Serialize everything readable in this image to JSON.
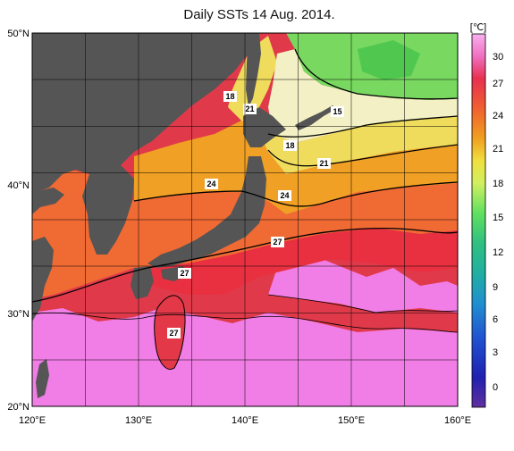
{
  "title": "Daily SSTs 14 Aug. 2014.",
  "unit": "[℃]",
  "lon_ticks": [
    "120°E",
    "130°E",
    "140°E",
    "150°E",
    "160°E"
  ],
  "lat_ticks": [
    "50°N",
    "40°N",
    "30°N",
    "20°N"
  ],
  "colorbar_ticks": [
    "30",
    "27",
    "24",
    "21",
    "18",
    "15",
    "12",
    "9",
    "6",
    "3",
    "0"
  ],
  "contour_labels": [
    "18",
    "21",
    "15",
    "18",
    "21",
    "24",
    "24",
    "27",
    "27",
    "27"
  ],
  "colors": {
    "land": "#555555",
    "sst_30": "#f080f0",
    "sst_27": "#e83040",
    "sst_24": "#f06030",
    "sst_21": "#f0a020",
    "sst_18": "#f0e060",
    "sst_15": "#f0f0c0",
    "sst_12": "#70d060"
  }
}
